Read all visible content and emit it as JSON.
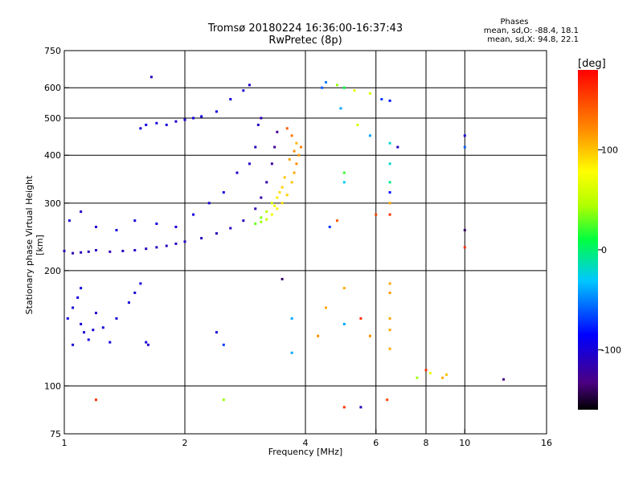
{
  "title_line1": "Tromsø 20180224 16:36:00-16:37:43",
  "title_line2": "RwPretec (8p)",
  "stats": {
    "heading": "Phases",
    "line_o": "mean, sd,O: -88.4, 18.1",
    "line_x": "mean, sd,X: 94.8, 22.1"
  },
  "colorbar": {
    "unit": "[deg]",
    "range": [
      -160,
      180
    ],
    "ticks": [
      {
        "label": "100",
        "value": 100
      },
      {
        "label": "0",
        "value": 0
      },
      {
        "label": "-100",
        "value": -100
      }
    ]
  },
  "chart_data": {
    "type": "scatter",
    "title": "Tromsø 20180224 16:36:00-16:37:43 RwPretec (8p)",
    "xlabel": "Frequency [MHz]",
    "ylabel": "Stationary phase Virtual Height [km]",
    "x_scale": "log",
    "y_scale": "log",
    "xlim": [
      1,
      16
    ],
    "ylim": [
      75,
      750
    ],
    "grid": true,
    "x_ticks": [
      {
        "label": "1",
        "value": 1
      },
      {
        "label": "2",
        "value": 2
      },
      {
        "label": "4",
        "value": 4
      },
      {
        "label": "6",
        "value": 6
      },
      {
        "label": "8",
        "value": 8
      },
      {
        "label": "10",
        "value": 10
      },
      {
        "label": "16",
        "value": 16
      }
    ],
    "x_gridlines": [
      2,
      4,
      6,
      8,
      10
    ],
    "y_ticks": [
      {
        "label": "75",
        "value": 75
      },
      {
        "label": "100",
        "value": 100
      },
      {
        "label": "200",
        "value": 200
      },
      {
        "label": "300",
        "value": 300
      },
      {
        "label": "400",
        "value": 400
      },
      {
        "label": "500",
        "value": 500
      },
      {
        "label": "600",
        "value": 600
      },
      {
        "label": "750",
        "value": 750
      }
    ],
    "y_gridlines": [
      100,
      200,
      300,
      400,
      500,
      600
    ],
    "series": [
      {
        "name": "O",
        "points": [
          [
            1.0,
            225,
            -110
          ],
          [
            1.05,
            222,
            -115
          ],
          [
            1.1,
            223,
            -105
          ],
          [
            1.15,
            224,
            -112
          ],
          [
            1.2,
            226,
            -108
          ],
          [
            1.3,
            224,
            -115
          ],
          [
            1.4,
            225,
            -110
          ],
          [
            1.5,
            226,
            -105
          ],
          [
            1.6,
            228,
            -110
          ],
          [
            1.7,
            230,
            -108
          ],
          [
            1.8,
            232,
            -112
          ],
          [
            1.9,
            235,
            -110
          ],
          [
            2.0,
            238,
            -105
          ],
          [
            2.2,
            243,
            -110
          ],
          [
            2.4,
            250,
            -108
          ],
          [
            2.6,
            258,
            -112
          ],
          [
            2.8,
            270,
            -110
          ],
          [
            3.0,
            290,
            -115
          ],
          [
            3.1,
            310,
            -120
          ],
          [
            3.2,
            340,
            -118
          ],
          [
            3.3,
            380,
            -122
          ],
          [
            3.35,
            420,
            -125
          ],
          [
            3.4,
            460,
            -128
          ],
          [
            1.03,
            270,
            -100
          ],
          [
            1.1,
            285,
            -105
          ],
          [
            1.2,
            260,
            -102
          ],
          [
            1.35,
            255,
            -98
          ],
          [
            1.5,
            270,
            -100
          ],
          [
            1.7,
            265,
            -95
          ],
          [
            1.9,
            260,
            -100
          ],
          [
            2.1,
            280,
            -98
          ],
          [
            2.3,
            300,
            -102
          ],
          [
            2.5,
            320,
            -100
          ],
          [
            2.7,
            360,
            -104
          ],
          [
            2.9,
            380,
            -108
          ],
          [
            3.0,
            420,
            -110
          ],
          [
            3.05,
            480,
            -112
          ],
          [
            3.1,
            500,
            -115
          ],
          [
            1.55,
            470,
            -100
          ],
          [
            1.6,
            480,
            -95
          ],
          [
            1.7,
            485,
            -98
          ],
          [
            1.8,
            480,
            -100
          ],
          [
            1.9,
            490,
            -102
          ],
          [
            2.0,
            495,
            -100
          ],
          [
            2.1,
            500,
            -98
          ],
          [
            2.2,
            505,
            -100
          ],
          [
            2.4,
            520,
            -95
          ],
          [
            2.6,
            560,
            -100
          ],
          [
            2.8,
            590,
            -102
          ],
          [
            2.9,
            610,
            -105
          ],
          [
            1.65,
            640,
            -110
          ],
          [
            1.02,
            150,
            -95
          ],
          [
            1.05,
            160,
            -100
          ],
          [
            1.08,
            170,
            -98
          ],
          [
            1.1,
            145,
            -102
          ],
          [
            1.12,
            138,
            -100
          ],
          [
            1.15,
            132,
            -96
          ],
          [
            1.18,
            140,
            -100
          ],
          [
            1.2,
            155,
            -104
          ],
          [
            1.25,
            142,
            -98
          ],
          [
            1.05,
            128,
            -100
          ],
          [
            1.1,
            180,
            -96
          ],
          [
            1.3,
            130,
            -100
          ],
          [
            1.35,
            150,
            -98
          ],
          [
            1.45,
            165,
            -100
          ],
          [
            1.5,
            175,
            -102
          ],
          [
            1.55,
            185,
            -100
          ],
          [
            1.6,
            130,
            -98
          ],
          [
            1.62,
            128,
            -104
          ]
        ]
      },
      {
        "name": "X",
        "points": [
          [
            3.0,
            265,
            30
          ],
          [
            3.1,
            268,
            40
          ],
          [
            3.2,
            272,
            55
          ],
          [
            3.3,
            280,
            70
          ],
          [
            3.4,
            290,
            80
          ],
          [
            3.5,
            300,
            90
          ],
          [
            3.6,
            315,
            95
          ],
          [
            3.7,
            340,
            100
          ],
          [
            3.75,
            360,
            110
          ],
          [
            3.8,
            380,
            120
          ],
          [
            3.85,
            400,
            115
          ],
          [
            3.9,
            420,
            125
          ],
          [
            3.7,
            450,
            130
          ],
          [
            3.6,
            470,
            140
          ],
          [
            3.8,
            430,
            105
          ],
          [
            3.5,
            330,
            95
          ],
          [
            3.4,
            310,
            85
          ],
          [
            3.3,
            300,
            60
          ],
          [
            3.2,
            285,
            45
          ],
          [
            3.1,
            275,
            35
          ],
          [
            3.55,
            350,
            100
          ],
          [
            3.65,
            390,
            110
          ],
          [
            3.75,
            410,
            120
          ],
          [
            3.45,
            320,
            90
          ],
          [
            3.35,
            295,
            75
          ]
        ]
      },
      {
        "name": "scattered",
        "points": [
          [
            4.5,
            620,
            -50
          ],
          [
            4.8,
            610,
            40
          ],
          [
            5.0,
            600,
            10
          ],
          [
            5.3,
            590,
            70
          ],
          [
            5.8,
            580,
            60
          ],
          [
            6.2,
            560,
            -70
          ],
          [
            6.5,
            555,
            -80
          ],
          [
            4.4,
            600,
            -60
          ],
          [
            4.9,
            530,
            -40
          ],
          [
            5.4,
            480,
            60
          ],
          [
            5.8,
            450,
            -40
          ],
          [
            6.5,
            430,
            -20
          ],
          [
            6.8,
            420,
            -110
          ],
          [
            6.5,
            380,
            -20
          ],
          [
            5.0,
            360,
            20
          ],
          [
            5.0,
            340,
            -30
          ],
          [
            6.5,
            340,
            -5
          ],
          [
            6.5,
            320,
            -80
          ],
          [
            6.5,
            300,
            110
          ],
          [
            6.0,
            280,
            150
          ],
          [
            6.5,
            280,
            160
          ],
          [
            4.8,
            270,
            140
          ],
          [
            4.6,
            260,
            -70
          ],
          [
            10.0,
            450,
            -100
          ],
          [
            10.0,
            420,
            -60
          ],
          [
            10.0,
            255,
            -140
          ],
          [
            10.0,
            230,
            160
          ],
          [
            5.0,
            180,
            110
          ],
          [
            6.5,
            185,
            110
          ],
          [
            6.5,
            175,
            115
          ],
          [
            4.5,
            160,
            110
          ],
          [
            6.5,
            150,
            110
          ],
          [
            5.0,
            145,
            -40
          ],
          [
            5.5,
            150,
            160
          ],
          [
            4.3,
            135,
            120
          ],
          [
            5.8,
            135,
            120
          ],
          [
            6.5,
            140,
            110
          ],
          [
            6.5,
            125,
            110
          ],
          [
            8.0,
            110,
            160
          ],
          [
            8.2,
            108,
            70
          ],
          [
            8.8,
            105,
            110
          ],
          [
            9.0,
            107,
            100
          ],
          [
            7.6,
            105,
            40
          ],
          [
            12.5,
            104,
            -130
          ],
          [
            5.0,
            88,
            160
          ],
          [
            5.5,
            88,
            -110
          ],
          [
            6.4,
            92,
            150
          ],
          [
            3.7,
            122,
            -40
          ],
          [
            3.7,
            150,
            -40
          ],
          [
            3.5,
            190,
            -140
          ],
          [
            2.5,
            128,
            -70
          ],
          [
            2.4,
            138,
            -100
          ],
          [
            2.5,
            92,
            40
          ],
          [
            1.2,
            92,
            160
          ]
        ]
      }
    ]
  }
}
